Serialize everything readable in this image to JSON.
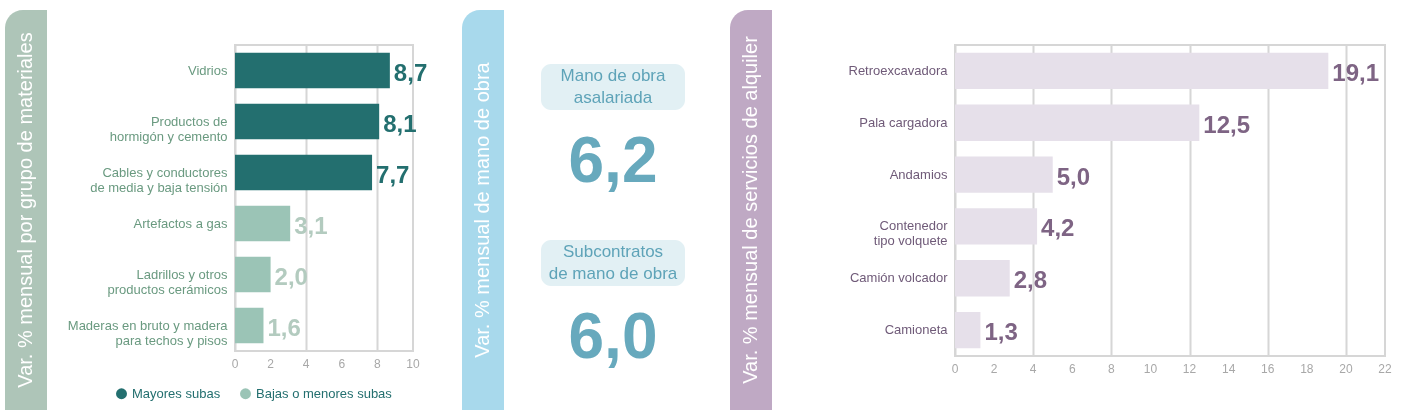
{
  "chart_data": [
    {
      "type": "bar",
      "orientation": "horizontal",
      "ylabel": "Var. % mensual por grupo de materiales",
      "categories": [
        "Vidrios",
        "Productos de hormigón y cemento",
        "Cables y conductores de media y baja tensión",
        "Artefactos a gas",
        "Ladrillos y otros productos cerámicos",
        "Maderas en bruto y madera para techos y pisos"
      ],
      "series": [
        {
          "name": "Mayores subas",
          "color": "#236f6f",
          "values": [
            8.7,
            8.1,
            7.7,
            null,
            null,
            null
          ],
          "value_labels": [
            "8,7",
            "8,1",
            "7,7",
            null,
            null,
            null
          ]
        },
        {
          "name": "Bajas o menores subas",
          "color": "#9bc4b6",
          "values": [
            null,
            null,
            null,
            3.1,
            2.0,
            1.6
          ],
          "value_labels": [
            null,
            null,
            null,
            "3,1",
            "2,0",
            "1,6"
          ]
        }
      ],
      "xlim": [
        0,
        10
      ],
      "xticks": [
        0,
        2,
        4,
        6,
        8,
        10
      ],
      "grid": "x",
      "data_labels": true,
      "legend": "bottom"
    },
    {
      "type": "other",
      "ylabel": "Var. % mensual de mano de obra",
      "categories": [
        "Mano de obra asalariada",
        "Subcontratos de mano de obra"
      ],
      "values": [
        6.2,
        6.0
      ],
      "value_labels": [
        "6,2",
        "6,0"
      ]
    },
    {
      "type": "bar",
      "orientation": "horizontal",
      "ylabel": "Var. % mensual de servicios de alquiler",
      "categories": [
        "Retroexcavadora",
        "Pala cargadora",
        "Andamios",
        "Contenedor tipo volquete",
        "Camión volcador",
        "Camioneta"
      ],
      "series": [
        {
          "color": "#e6e0ea",
          "values": [
            19.1,
            12.5,
            5.0,
            4.2,
            2.8,
            1.3
          ],
          "value_labels": [
            "19,1",
            "12,5",
            "5,0",
            "4,2",
            "2,8",
            "1,3"
          ]
        }
      ],
      "xlim": [
        0,
        22
      ],
      "xticks": [
        0,
        2,
        4,
        6,
        8,
        10,
        12,
        14,
        16,
        18,
        20,
        22
      ],
      "grid": "x",
      "data_labels": true
    }
  ]
}
